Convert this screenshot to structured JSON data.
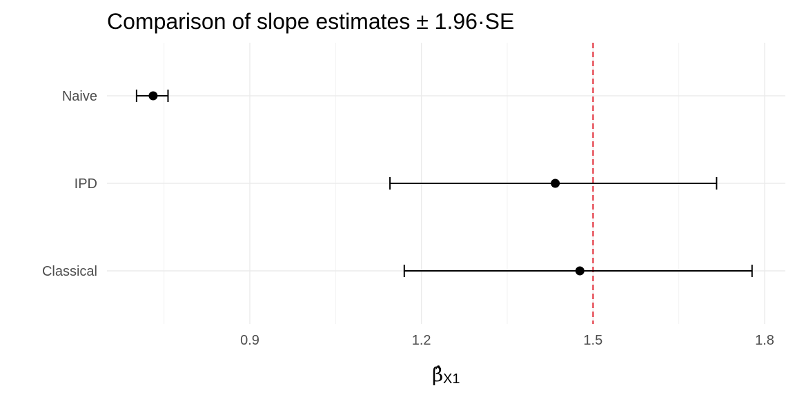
{
  "chart_data": {
    "type": "forest",
    "title": "Comparison of slope estimates ± 1.96·SE",
    "xlabel": "β̂",
    "xlabel_subscript": "X1",
    "ylabel": "",
    "xlim": [
      0.66,
      1.83
    ],
    "x_ticks": [
      0.9,
      1.2,
      1.5,
      1.8
    ],
    "x_tick_labels": [
      "0.9",
      "1.2",
      "1.5",
      "1.8"
    ],
    "categories": [
      "Naive",
      "IPD",
      "Classical"
    ],
    "estimates": [
      {
        "method": "Naive",
        "estimate": 0.731,
        "lower": 0.702,
        "upper": 0.757
      },
      {
        "method": "IPD",
        "estimate": 1.434,
        "lower": 1.145,
        "upper": 1.716
      },
      {
        "method": "Classical",
        "estimate": 1.477,
        "lower": 1.17,
        "upper": 1.778
      }
    ],
    "reference_line": {
      "value": 1.5,
      "color": "#e0202c",
      "style": "dashed"
    },
    "grid": true,
    "legend": "none"
  }
}
